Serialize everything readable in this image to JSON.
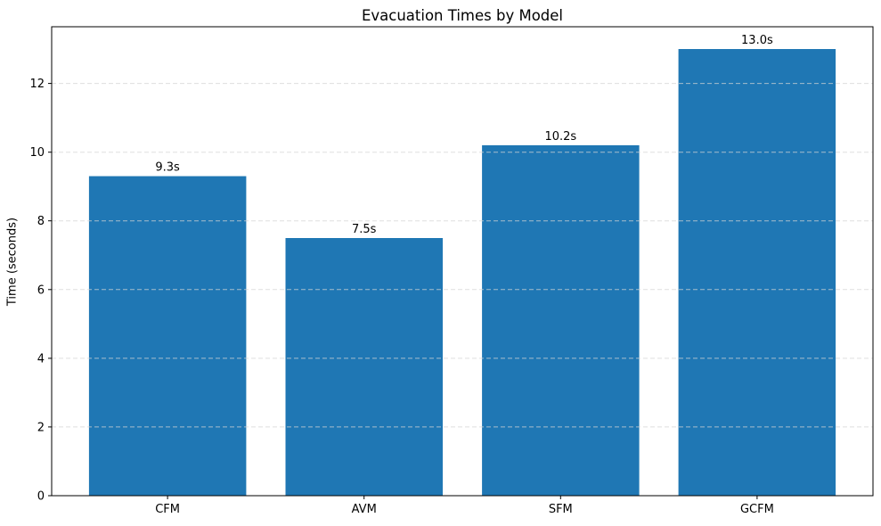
{
  "chart_data": {
    "type": "bar",
    "title": "Evacuation Times by Model",
    "xlabel": "",
    "ylabel": "Time (seconds)",
    "categories": [
      "CFM",
      "AVM",
      "SFM",
      "GCFM"
    ],
    "values": [
      9.3,
      7.5,
      10.2,
      13.0
    ],
    "bar_value_labels": [
      "9.3s",
      "7.5s",
      "10.2s",
      "13.0s"
    ],
    "yticks": [
      0,
      2,
      4,
      6,
      8,
      10,
      12
    ],
    "ylim": [
      0,
      13.65
    ],
    "legend": "none",
    "grid": "horizontal-dashed-over-bars",
    "bar_color": "#1f77b4",
    "grid_color": "#d4d4d4",
    "frame_color": "#000000",
    "text_color": "#000000",
    "background_color": "#ffffff"
  }
}
